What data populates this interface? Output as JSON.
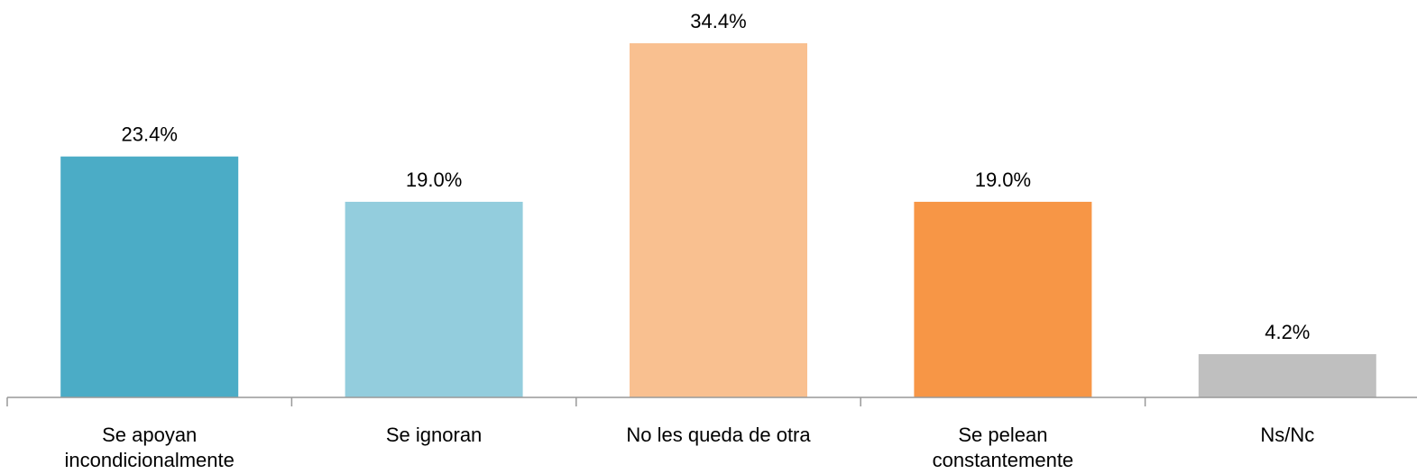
{
  "chart_data": {
    "type": "bar",
    "title": "",
    "xlabel": "",
    "ylabel": "",
    "ylim": [
      0,
      36
    ],
    "grid": false,
    "categories": [
      [
        "Se apoyan",
        "incondicionalmente"
      ],
      [
        "Se ignoran"
      ],
      [
        "No les queda de otra"
      ],
      [
        "Se pelean",
        "constantemente"
      ],
      [
        "Ns/Nc"
      ]
    ],
    "values": [
      23.4,
      19.0,
      34.4,
      19.0,
      4.2
    ],
    "value_labels": [
      "23.4%",
      "19.0%",
      "34.4%",
      "19.0%",
      "4.2%"
    ],
    "colors": [
      "#4BACC6",
      "#93CDDD",
      "#F9C090",
      "#F79646",
      "#BFBFBF"
    ]
  }
}
